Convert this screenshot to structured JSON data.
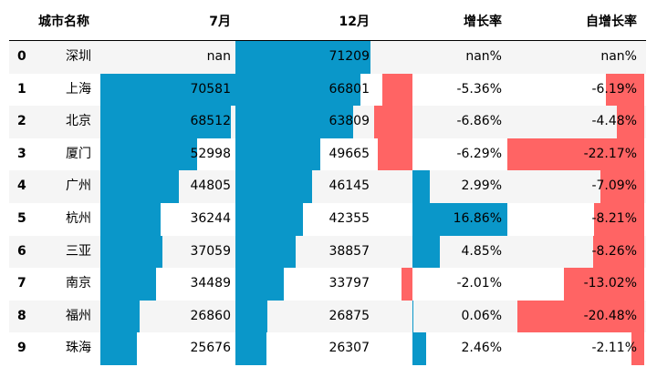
{
  "columns": {
    "index": "",
    "city": "城市名称",
    "jul": "7月",
    "dec": "12月",
    "growth": "增长率",
    "self_growth": "自增长率"
  },
  "colors": {
    "positive": "#0a97c9",
    "negative": "#ff6464",
    "stripe": "#f5f5f5"
  },
  "chart_data": {
    "type": "table",
    "bar_styling": "in-cell bars; blue for positive values, red for negative values",
    "rows": [
      {
        "index": "0",
        "city": "深圳",
        "jul": "nan",
        "dec": "71209",
        "growth": "nan%",
        "self_growth": "nan%"
      },
      {
        "index": "1",
        "city": "上海",
        "jul": "70581",
        "dec": "66801",
        "growth": "-5.36%",
        "self_growth": "-6.19%"
      },
      {
        "index": "2",
        "city": "北京",
        "jul": "68512",
        "dec": "63809",
        "growth": "-6.86%",
        "self_growth": "-4.48%"
      },
      {
        "index": "3",
        "city": "厦门",
        "jul": "52998",
        "dec": "49665",
        "growth": "-6.29%",
        "self_growth": "-22.17%"
      },
      {
        "index": "4",
        "city": "广州",
        "jul": "44805",
        "dec": "46145",
        "growth": "2.99%",
        "self_growth": "-7.09%"
      },
      {
        "index": "5",
        "city": "杭州",
        "jul": "36244",
        "dec": "42355",
        "growth": "16.86%",
        "self_growth": "-8.21%"
      },
      {
        "index": "6",
        "city": "三亚",
        "jul": "37059",
        "dec": "38857",
        "growth": "4.85%",
        "self_growth": "-8.26%"
      },
      {
        "index": "7",
        "city": "南京",
        "jul": "34489",
        "dec": "33797",
        "growth": "-2.01%",
        "self_growth": "-13.02%"
      },
      {
        "index": "8",
        "city": "福州",
        "jul": "26860",
        "dec": "26875",
        "growth": "0.06%",
        "self_growth": "-20.48%"
      },
      {
        "index": "9",
        "city": "珠海",
        "jul": "25676",
        "dec": "26307",
        "growth": "2.46%",
        "self_growth": "-2.11%"
      }
    ]
  }
}
